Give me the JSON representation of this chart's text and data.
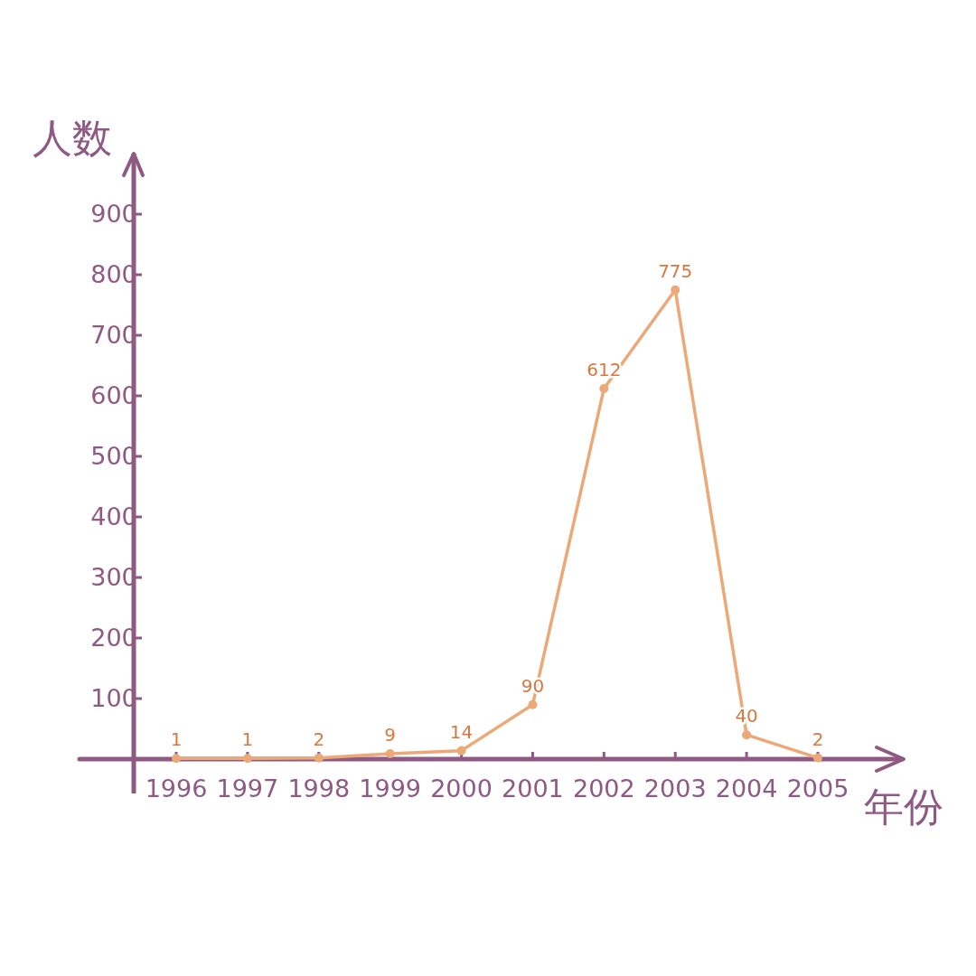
{
  "chart_data": {
    "type": "line",
    "xlabel": "年份",
    "ylabel": "人数",
    "categories": [
      "1996",
      "1997",
      "1998",
      "1999",
      "2000",
      "2001",
      "2002",
      "2003",
      "2004",
      "2005"
    ],
    "series": [
      {
        "color": "#eda878",
        "values": [
          1,
          1,
          2,
          9,
          14,
          90,
          612,
          775,
          40,
          2
        ]
      }
    ],
    "ylim": [
      0,
      1000
    ],
    "yticks": [
      100,
      200,
      300,
      400,
      500,
      600,
      700,
      800,
      900
    ],
    "marker": "circle",
    "data_labels": true
  }
}
